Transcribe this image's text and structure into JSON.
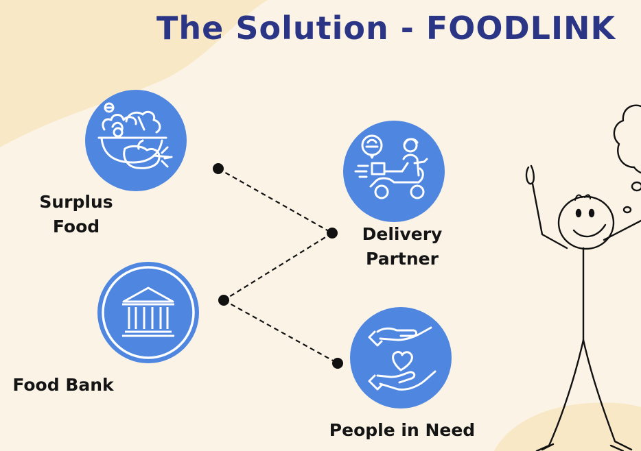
{
  "title": "The Solution - FOODLINK",
  "nodes": {
    "surplus_food": {
      "line1": "Surplus",
      "line2": "Food",
      "icon": "salad-bowl-icon"
    },
    "food_bank": {
      "label": "Food Bank",
      "icon": "bank-building-icon"
    },
    "delivery_partner": {
      "line1": "Delivery",
      "line2": "Partner",
      "icon": "delivery-scooter-icon"
    },
    "people_in_need": {
      "label": "People in Need",
      "icon": "helping-hands-heart-icon"
    }
  },
  "colors": {
    "background": "#fbf3e6",
    "blob": "#f8e8c6",
    "circle": "#4f86e0",
    "title": "#2b3585",
    "text": "#141414"
  }
}
